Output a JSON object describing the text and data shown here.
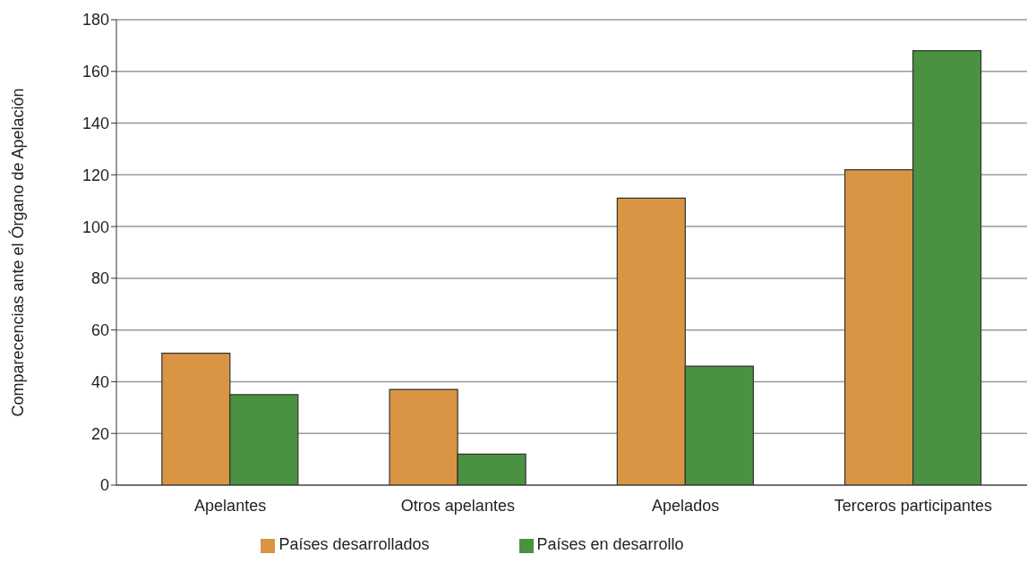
{
  "chart_data": {
    "type": "bar",
    "ylabel": "Comparecencias ante el Órgano de Apelación",
    "categories": [
      "Apelantes",
      "Otros apelantes",
      "Apelados",
      "Terceros participantes"
    ],
    "series": [
      {
        "name": "Países desarrollados",
        "color": "#d99543",
        "values": [
          51,
          37,
          111,
          122
        ]
      },
      {
        "name": "Países en desarrollo",
        "color": "#4a9241",
        "values": [
          35,
          12,
          46,
          168
        ]
      }
    ],
    "ylim": [
      0,
      180
    ],
    "yticks": [
      0,
      20,
      40,
      60,
      80,
      100,
      120,
      140,
      160,
      180
    ],
    "grid": "y",
    "legend": "bottom"
  }
}
